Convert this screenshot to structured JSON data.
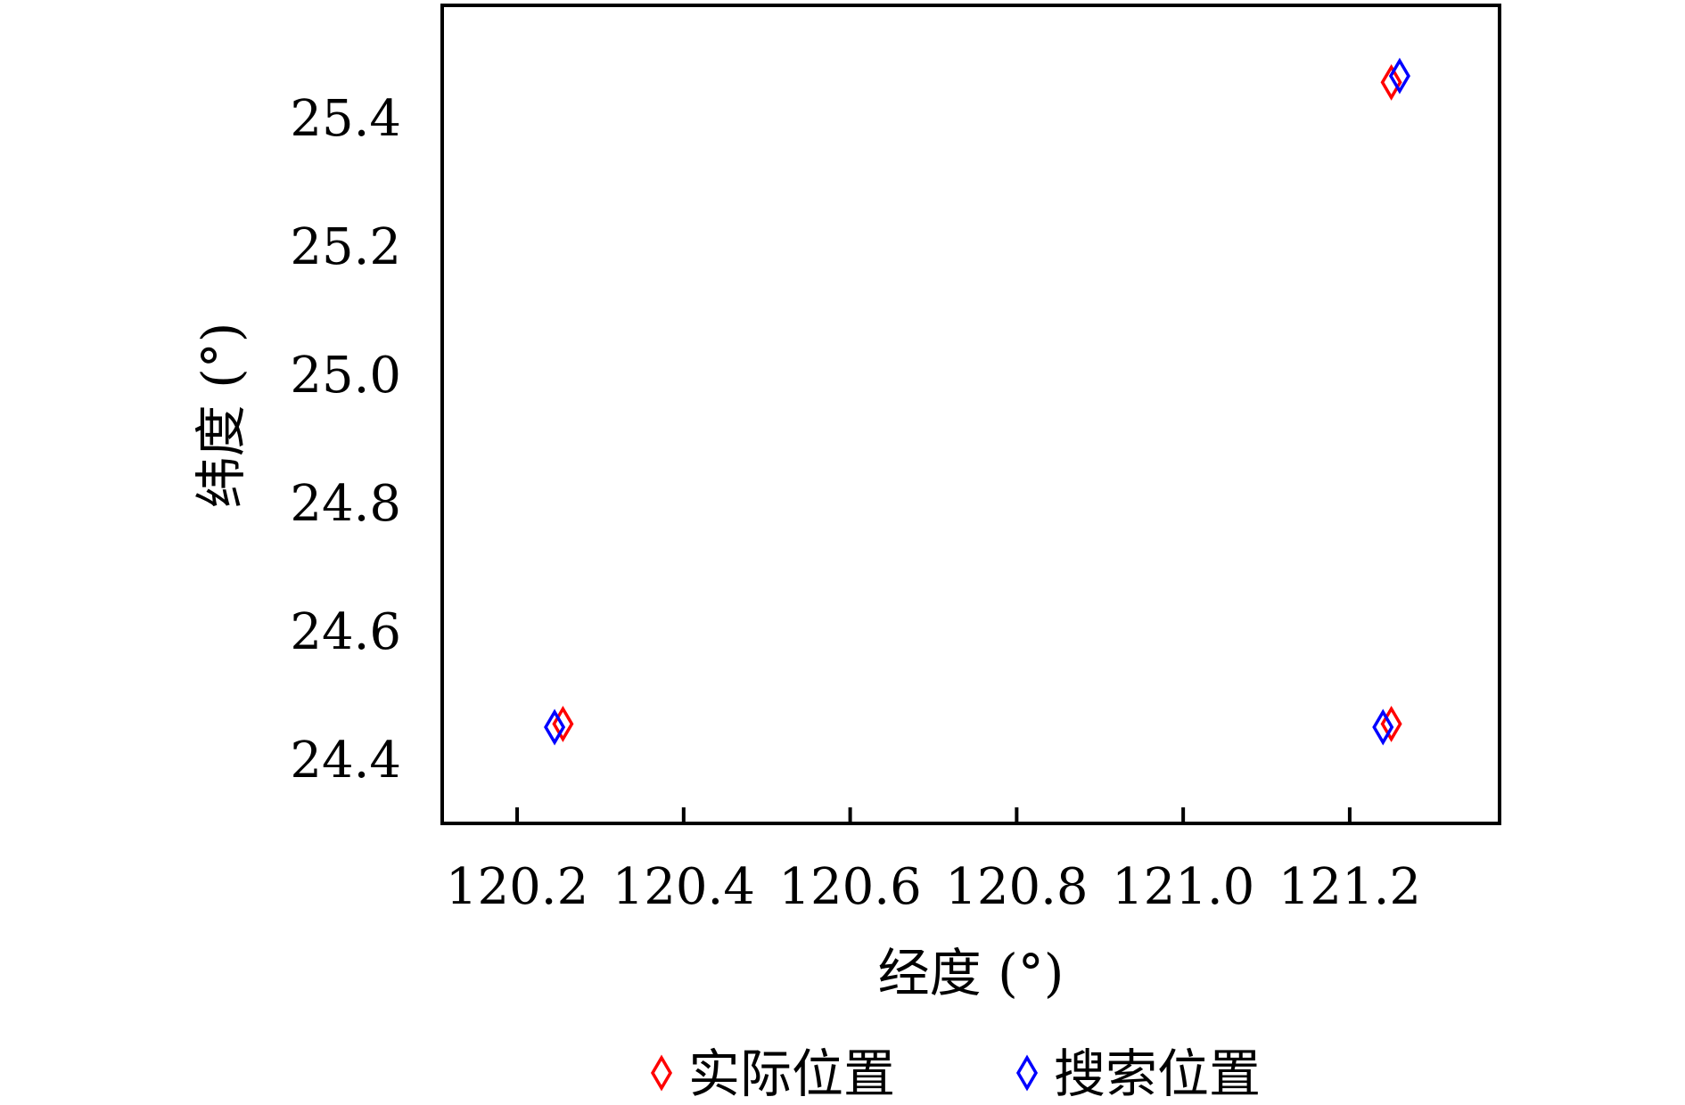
{
  "chart_data": {
    "type": "scatter",
    "title": "",
    "xlabel": "经度 (°)",
    "ylabel": "纬度 (°)",
    "xlim": [
      120.11,
      121.38
    ],
    "ylim": [
      24.3,
      25.575
    ],
    "xticks": [
      "120.2",
      "120.4",
      "120.6",
      "120.8",
      "121.0",
      "121.2"
    ],
    "yticks": [
      "24.4",
      "24.6",
      "24.8",
      "25.0",
      "25.2",
      "25.4"
    ],
    "grid": false,
    "legend_position": "bottom",
    "series": [
      {
        "name": "实际位置",
        "color": "#ff0000",
        "marker": "diamond-open",
        "points": [
          [
            120.255,
            24.455
          ],
          [
            121.25,
            24.455
          ],
          [
            121.25,
            25.455
          ]
        ]
      },
      {
        "name": "搜索位置",
        "color": "#0000ff",
        "marker": "diamond-open",
        "points": [
          [
            120.245,
            24.45
          ],
          [
            121.24,
            24.45
          ],
          [
            121.26,
            25.465
          ]
        ]
      }
    ]
  }
}
